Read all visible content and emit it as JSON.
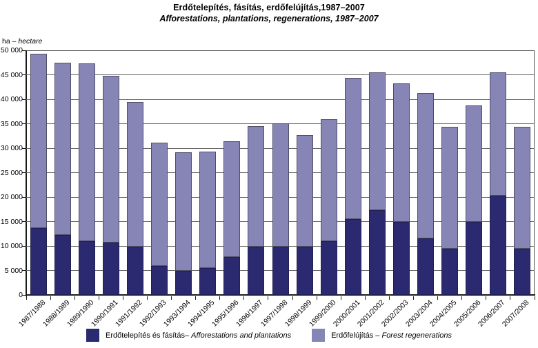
{
  "title": "Erdőtelepítés, fásítás, erdőfelújítás,1987–2007",
  "subtitle": "Afforestations, plantations, regenerations, 1987–2007",
  "unit_label": {
    "prefix": "ha – ",
    "italic": "hectare"
  },
  "colors": {
    "afforestation": "#2b2a71",
    "regeneration": "#8785b5",
    "gridline": "#6a6a6a",
    "axis": "#1a1a1a"
  },
  "y_axis": {
    "min": 0,
    "max": 50000,
    "step": 5000,
    "tick_labels": [
      "0",
      "5 000",
      "10 000",
      "15 000",
      "20 000",
      "25 000",
      "30 000",
      "35 000",
      "40 000",
      "45 000",
      "50 000"
    ]
  },
  "legend": {
    "items": [
      {
        "hu": "Erdőtelepítés és fásítás– ",
        "en": "Afforestations and plantations",
        "color": "#2b2a71"
      },
      {
        "hu": "Erdőfelújítás – ",
        "en": "Forest regenerations",
        "color": "#8785b5"
      }
    ]
  },
  "chart_data": {
    "type": "bar",
    "stacked": true,
    "grid": true,
    "legend_position": "bottom",
    "title": "Erdőtelepítés, fásítás, erdőfelújítás,1987–2007 / Afforestations, plantations, regenerations, 1987–2007",
    "xlabel": "",
    "ylabel": "ha – hectare",
    "ylim": [
      0,
      50000
    ],
    "categories": [
      "1987/1988",
      "1988/1989",
      "1989/1990",
      "1990/1991",
      "1991/1992",
      "1992/1993",
      "1993/1994",
      "1994/1995",
      "1995/1996",
      "1996/1997",
      "1997/1998",
      "1998/1999",
      "1999/2000",
      "2000/2001",
      "2001/2002",
      "2002/2003",
      "2003/2004",
      "2004/2005",
      "2005/2006",
      "2006/2007",
      "2007/2008"
    ],
    "series": [
      {
        "name": "Erdőtelepítés és fásítás – Afforestations and plantations",
        "color": "#2b2a71",
        "values": [
          13700,
          12200,
          11000,
          10700,
          9900,
          5900,
          4900,
          5500,
          7800,
          9800,
          9900,
          9800,
          11000,
          15500,
          17300,
          15000,
          11600,
          9500,
          15000,
          20300,
          9500
        ]
      },
      {
        "name": "Erdőfelújítás – Forest regenerations",
        "color": "#8785b5",
        "values": [
          35600,
          35200,
          36300,
          34100,
          29500,
          25200,
          24300,
          23800,
          23600,
          24700,
          25200,
          22900,
          24900,
          28800,
          28200,
          28200,
          29700,
          24800,
          23800,
          25200,
          24800
        ]
      }
    ],
    "totals": [
      49300,
      47400,
      47300,
      44800,
      39400,
      31100,
      29200,
      29300,
      31400,
      34500,
      35100,
      32700,
      35900,
      44300,
      45500,
      43200,
      41300,
      34300,
      38800,
      45500,
      34300
    ]
  }
}
